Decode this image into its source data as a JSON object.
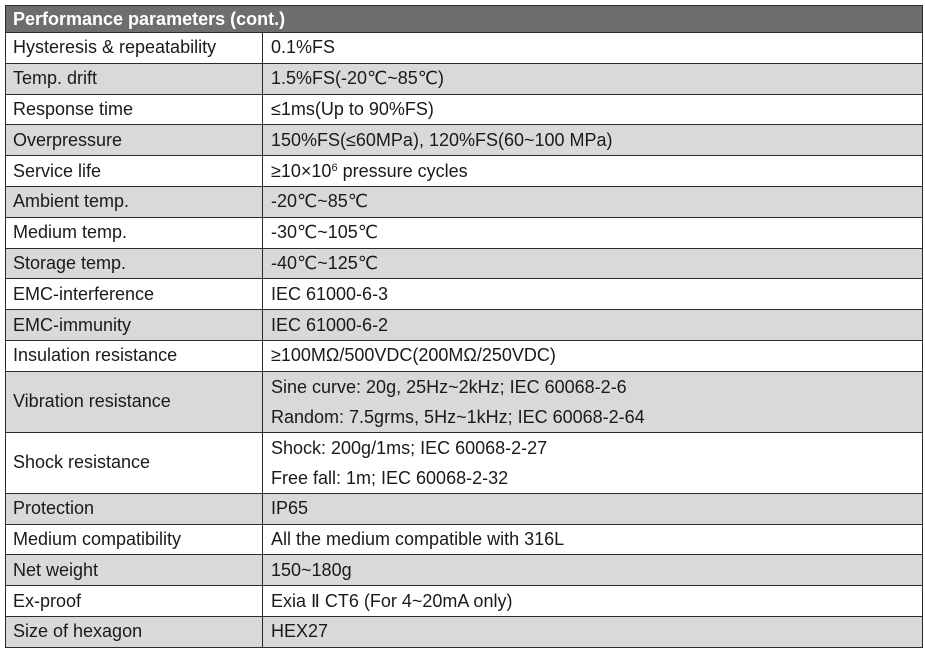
{
  "header": "Performance parameters (cont.)",
  "rows": [
    {
      "param": "Hysteresis & repeatability",
      "value": "0.1%FS"
    },
    {
      "param": "Temp. drift",
      "value": "1.5%FS(-20℃~85℃)"
    },
    {
      "param": "Response time",
      "value": "≤1ms(Up to 90%FS)"
    },
    {
      "param": "Overpressure",
      "value": "150%FS(≤60MPa), 120%FS(60~100 MPa)"
    },
    {
      "param": "Service life",
      "value_pre": "≥10×10",
      "value_sup": "6",
      "value_post": " pressure cycles"
    },
    {
      "param": "Ambient temp.",
      "value": "-20℃~85℃"
    },
    {
      "param": "Medium temp.",
      "value": "-30℃~105℃"
    },
    {
      "param": "Storage temp.",
      "value": "-40℃~125℃"
    },
    {
      "param": "EMC-interference",
      "value": "IEC 61000-6-3"
    },
    {
      "param": "EMC-immunity",
      "value": "IEC 61000-6-2"
    },
    {
      "param": "Insulation resistance",
      "value": "≥100MΩ/500VDC(200MΩ/250VDC)"
    },
    {
      "param": "Vibration resistance",
      "lines": [
        "Sine curve: 20g, 25Hz~2kHz; IEC 60068-2-6",
        "Random: 7.5grms, 5Hz~1kHz; IEC 60068-2-64"
      ]
    },
    {
      "param": "Shock resistance",
      "lines": [
        "Shock: 200g/1ms; IEC 60068-2-27",
        "Free fall: 1m; IEC 60068-2-32"
      ]
    },
    {
      "param": "Protection",
      "value": "IP65"
    },
    {
      "param": "Medium compatibility",
      "value": "All the medium compatible with 316L"
    },
    {
      "param": "Net weight",
      "value": "150~180g"
    },
    {
      "param": "Ex-proof",
      "value": "Exia Ⅱ CT6 (For 4~20mA only)"
    },
    {
      "param": "Size of hexagon",
      "value": "HEX27"
    }
  ]
}
